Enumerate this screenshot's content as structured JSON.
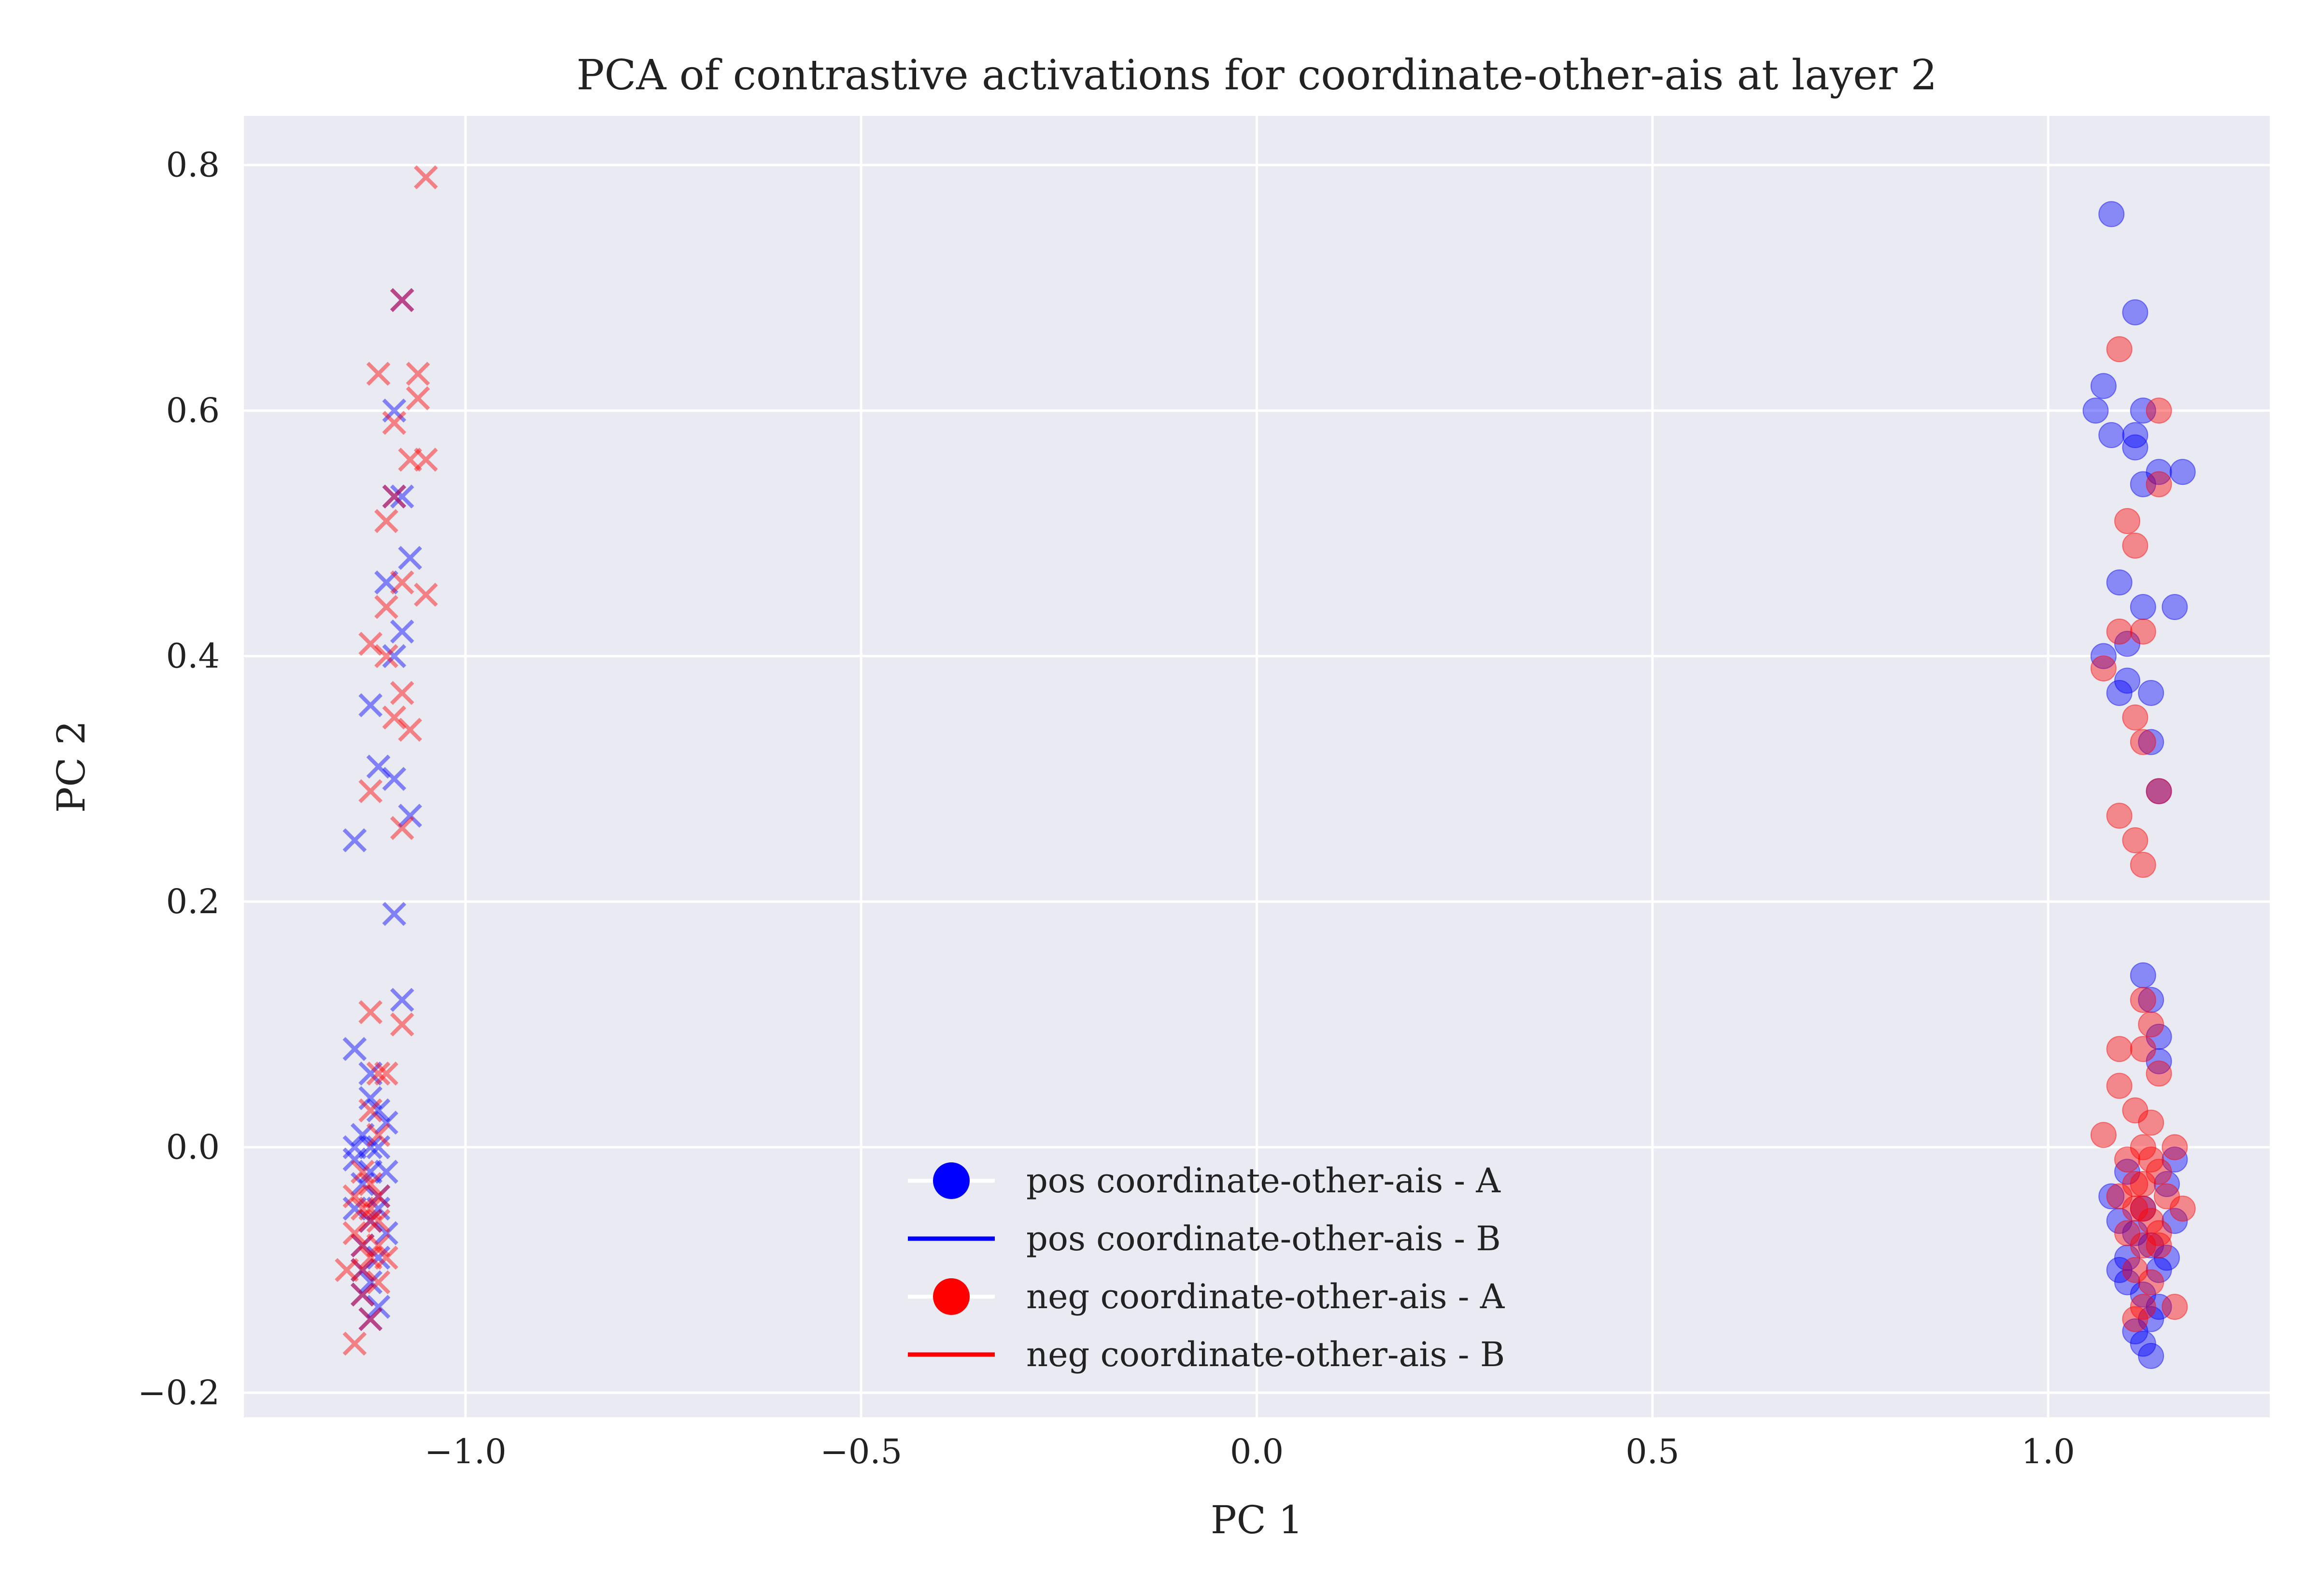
{
  "colors": {
    "background": "#eaeaf2",
    "grid": "#ffffff",
    "pos": "#0000ff",
    "neg": "#ff0000",
    "text": "#222222"
  },
  "chart_data": {
    "type": "scatter",
    "title": "PCA of contrastive activations for coordinate-other-ais at layer 2",
    "xlabel": "PC 1",
    "ylabel": "PC 2",
    "xlim": [
      -1.28,
      1.28
    ],
    "ylim": [
      -0.22,
      0.84
    ],
    "xticks": [
      {
        "value": -1.0,
        "label": "−1.0"
      },
      {
        "value": -0.5,
        "label": "−0.5"
      },
      {
        "value": 0.0,
        "label": "0.0"
      },
      {
        "value": 0.5,
        "label": "0.5"
      },
      {
        "value": 1.0,
        "label": "1.0"
      }
    ],
    "yticks": [
      {
        "value": -0.2,
        "label": "−0.2"
      },
      {
        "value": 0.0,
        "label": "0.0"
      },
      {
        "value": 0.2,
        "label": "0.2"
      },
      {
        "value": 0.4,
        "label": "0.4"
      },
      {
        "value": 0.6,
        "label": "0.6"
      },
      {
        "value": 0.8,
        "label": "0.8"
      }
    ],
    "grid": true,
    "legend": {
      "placement": "lower-center",
      "entries": [
        {
          "label": "pos coordinate-other-ais - A",
          "marker": "circle",
          "color": "#0000ff"
        },
        {
          "label": "pos coordinate-other-ais - B",
          "marker": "line",
          "color": "#0000ff"
        },
        {
          "label": "neg coordinate-other-ais - A",
          "marker": "circle",
          "color": "#ff0000"
        },
        {
          "label": "neg coordinate-other-ais - B",
          "marker": "line",
          "color": "#ff0000"
        }
      ]
    },
    "series": [
      {
        "name": "pos coordinate-other-ais - A",
        "marker": "circle",
        "color": "#0000ff",
        "points": [
          [
            1.08,
            0.76
          ],
          [
            1.11,
            0.68
          ],
          [
            1.07,
            0.62
          ],
          [
            1.06,
            0.6
          ],
          [
            1.08,
            0.58
          ],
          [
            1.11,
            0.58
          ],
          [
            1.11,
            0.57
          ],
          [
            1.12,
            0.6
          ],
          [
            1.14,
            0.55
          ],
          [
            1.12,
            0.54
          ],
          [
            1.17,
            0.55
          ],
          [
            1.09,
            0.46
          ],
          [
            1.07,
            0.4
          ],
          [
            1.12,
            0.44
          ],
          [
            1.16,
            0.44
          ],
          [
            1.1,
            0.41
          ],
          [
            1.09,
            0.37
          ],
          [
            1.1,
            0.38
          ],
          [
            1.13,
            0.37
          ],
          [
            1.13,
            0.33
          ],
          [
            1.14,
            0.29
          ],
          [
            1.12,
            0.14
          ],
          [
            1.13,
            0.12
          ],
          [
            1.14,
            0.09
          ],
          [
            1.14,
            0.07
          ],
          [
            1.1,
            -0.02
          ],
          [
            1.15,
            -0.03
          ],
          [
            1.09,
            -0.06
          ],
          [
            1.12,
            -0.05
          ],
          [
            1.16,
            -0.06
          ],
          [
            1.1,
            -0.09
          ],
          [
            1.13,
            -0.08
          ],
          [
            1.15,
            -0.09
          ],
          [
            1.1,
            -0.11
          ],
          [
            1.12,
            -0.12
          ],
          [
            1.14,
            -0.1
          ],
          [
            1.13,
            -0.14
          ],
          [
            1.11,
            -0.15
          ],
          [
            1.14,
            -0.13
          ],
          [
            1.12,
            -0.16
          ],
          [
            1.13,
            -0.17
          ],
          [
            1.08,
            -0.04
          ],
          [
            1.16,
            -0.01
          ],
          [
            1.11,
            -0.07
          ],
          [
            1.09,
            -0.1
          ]
        ]
      },
      {
        "name": "pos coordinate-other-ais - B",
        "marker": "x",
        "color": "#0000ff",
        "points": [
          [
            -1.08,
            0.69
          ],
          [
            -1.09,
            0.6
          ],
          [
            -1.09,
            0.53
          ],
          [
            -1.08,
            0.53
          ],
          [
            -1.07,
            0.48
          ],
          [
            -1.1,
            0.46
          ],
          [
            -1.08,
            0.42
          ],
          [
            -1.09,
            0.4
          ],
          [
            -1.12,
            0.36
          ],
          [
            -1.11,
            0.31
          ],
          [
            -1.09,
            0.3
          ],
          [
            -1.07,
            0.27
          ],
          [
            -1.14,
            0.25
          ],
          [
            -1.09,
            0.19
          ],
          [
            -1.08,
            0.12
          ],
          [
            -1.14,
            0.08
          ],
          [
            -1.12,
            0.06
          ],
          [
            -1.12,
            0.04
          ],
          [
            -1.11,
            0.03
          ],
          [
            -1.13,
            0.01
          ],
          [
            -1.11,
            0.0
          ],
          [
            -1.14,
            -0.01
          ],
          [
            -1.12,
            -0.02
          ],
          [
            -1.13,
            -0.03
          ],
          [
            -1.11,
            -0.04
          ],
          [
            -1.14,
            -0.05
          ],
          [
            -1.12,
            -0.06
          ],
          [
            -1.1,
            -0.07
          ],
          [
            -1.13,
            -0.08
          ],
          [
            -1.11,
            -0.09
          ],
          [
            -1.13,
            -0.1
          ],
          [
            -1.12,
            -0.11
          ],
          [
            -1.11,
            -0.13
          ],
          [
            -1.12,
            -0.14
          ],
          [
            -1.1,
            -0.02
          ],
          [
            -1.14,
            0.0
          ],
          [
            -1.1,
            0.02
          ],
          [
            -1.13,
            -0.12
          ],
          [
            -1.12,
            0.0
          ],
          [
            -1.11,
            -0.05
          ]
        ]
      },
      {
        "name": "neg coordinate-other-ais - A",
        "marker": "circle",
        "color": "#ff0000",
        "points": [
          [
            1.09,
            0.65
          ],
          [
            1.14,
            0.6
          ],
          [
            1.14,
            0.54
          ],
          [
            1.1,
            0.51
          ],
          [
            1.11,
            0.49
          ],
          [
            1.09,
            0.42
          ],
          [
            1.12,
            0.42
          ],
          [
            1.07,
            0.39
          ],
          [
            1.11,
            0.35
          ],
          [
            1.12,
            0.33
          ],
          [
            1.14,
            0.29
          ],
          [
            1.09,
            0.27
          ],
          [
            1.11,
            0.25
          ],
          [
            1.12,
            0.23
          ],
          [
            1.12,
            0.12
          ],
          [
            1.13,
            0.1
          ],
          [
            1.09,
            0.08
          ],
          [
            1.12,
            0.08
          ],
          [
            1.14,
            0.06
          ],
          [
            1.09,
            0.05
          ],
          [
            1.11,
            0.03
          ],
          [
            1.13,
            0.02
          ],
          [
            1.07,
            0.01
          ],
          [
            1.12,
            0.0
          ],
          [
            1.16,
            0.0
          ],
          [
            1.1,
            -0.01
          ],
          [
            1.14,
            -0.02
          ],
          [
            1.12,
            -0.03
          ],
          [
            1.09,
            -0.04
          ],
          [
            1.15,
            -0.04
          ],
          [
            1.11,
            -0.05
          ],
          [
            1.13,
            -0.06
          ],
          [
            1.17,
            -0.05
          ],
          [
            1.1,
            -0.07
          ],
          [
            1.12,
            -0.08
          ],
          [
            1.14,
            -0.08
          ],
          [
            1.11,
            -0.1
          ],
          [
            1.13,
            -0.11
          ],
          [
            1.12,
            -0.13
          ],
          [
            1.16,
            -0.13
          ],
          [
            1.11,
            -0.14
          ],
          [
            1.13,
            -0.01
          ],
          [
            1.12,
            -0.05
          ],
          [
            1.11,
            -0.03
          ],
          [
            1.14,
            -0.07
          ]
        ]
      },
      {
        "name": "neg coordinate-other-ais - B",
        "marker": "x",
        "color": "#ff0000",
        "points": [
          [
            -1.05,
            0.79
          ],
          [
            -1.08,
            0.69
          ],
          [
            -1.11,
            0.63
          ],
          [
            -1.06,
            0.63
          ],
          [
            -1.06,
            0.61
          ],
          [
            -1.09,
            0.59
          ],
          [
            -1.07,
            0.56
          ],
          [
            -1.05,
            0.56
          ],
          [
            -1.09,
            0.53
          ],
          [
            -1.1,
            0.51
          ],
          [
            -1.05,
            0.45
          ],
          [
            -1.08,
            0.46
          ],
          [
            -1.1,
            0.44
          ],
          [
            -1.12,
            0.41
          ],
          [
            -1.1,
            0.4
          ],
          [
            -1.08,
            0.37
          ],
          [
            -1.09,
            0.35
          ],
          [
            -1.07,
            0.34
          ],
          [
            -1.12,
            0.29
          ],
          [
            -1.08,
            0.26
          ],
          [
            -1.12,
            0.11
          ],
          [
            -1.08,
            0.1
          ],
          [
            -1.11,
            0.06
          ],
          [
            -1.1,
            0.06
          ],
          [
            -1.12,
            0.03
          ],
          [
            -1.11,
            0.01
          ],
          [
            -1.13,
            -0.02
          ],
          [
            -1.12,
            -0.03
          ],
          [
            -1.11,
            -0.04
          ],
          [
            -1.13,
            -0.05
          ],
          [
            -1.12,
            -0.06
          ],
          [
            -1.14,
            -0.07
          ],
          [
            -1.11,
            -0.08
          ],
          [
            -1.12,
            -0.09
          ],
          [
            -1.13,
            -0.1
          ],
          [
            -1.11,
            -0.11
          ],
          [
            -1.13,
            -0.12
          ],
          [
            -1.12,
            -0.14
          ],
          [
            -1.14,
            -0.16
          ],
          [
            -1.15,
            -0.1
          ],
          [
            -1.1,
            -0.09
          ],
          [
            -1.12,
            -0.05
          ],
          [
            -1.14,
            -0.04
          ],
          [
            -1.11,
            -0.06
          ],
          [
            -1.13,
            -0.08
          ]
        ]
      }
    ]
  }
}
